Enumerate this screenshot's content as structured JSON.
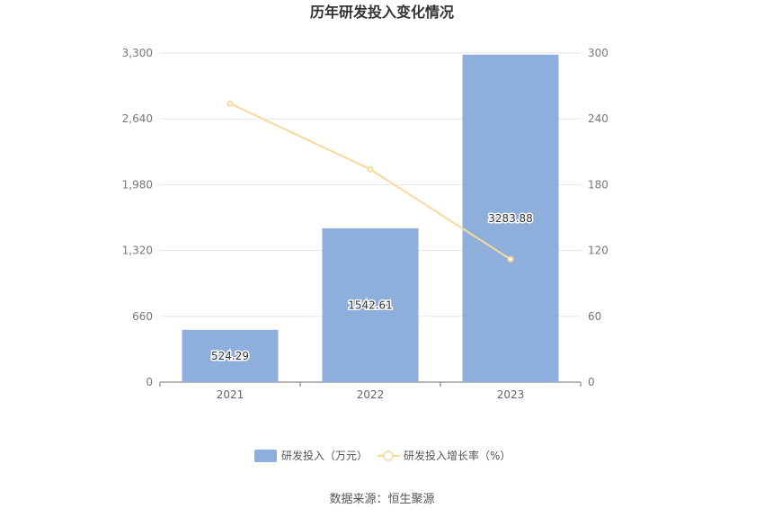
{
  "chart_data": {
    "type": "bar",
    "title": "历年研发投入变化情况",
    "categories": [
      "2021",
      "2022",
      "2023"
    ],
    "series": [
      {
        "name": "研发投入（万元）",
        "type": "bar",
        "axis": "left",
        "color": "#8eaedb",
        "values": [
          524.29,
          1542.61,
          3283.88
        ],
        "labels": [
          "524.29",
          "1542.61",
          "3283.88"
        ]
      },
      {
        "name": "研发投入增长率（%）",
        "type": "line",
        "axis": "right",
        "color": "#f9d89b",
        "values": [
          254,
          194,
          112
        ]
      }
    ],
    "y_left": {
      "range": [
        0,
        3300
      ],
      "ticks": [
        "0",
        "660",
        "1,320",
        "1,980",
        "2,640",
        "3,300"
      ],
      "tick_values": [
        0,
        660,
        1320,
        1980,
        2640,
        3300
      ]
    },
    "y_right": {
      "range": [
        0,
        300
      ],
      "ticks": [
        "0",
        "60",
        "120",
        "180",
        "240",
        "300"
      ],
      "tick_values": [
        0,
        60,
        120,
        180,
        240,
        300
      ]
    },
    "grid": true,
    "legend": "bottom"
  },
  "source": "数据来源：恒生聚源"
}
